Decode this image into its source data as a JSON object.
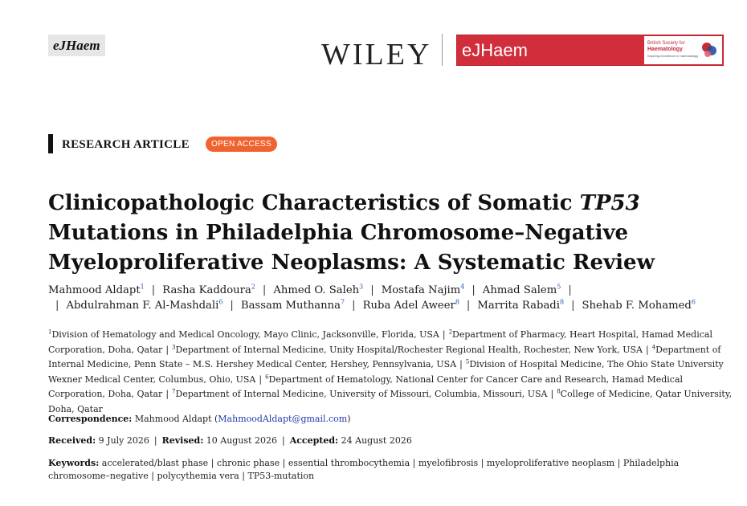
{
  "journal_tag": "eJHaem",
  "publisher": "WILEY",
  "banner": {
    "journal": "eJHaem",
    "society_line1": "British Society for",
    "society_line2": "Haematology",
    "society_line3": "Inspiring excellence in haematology"
  },
  "article_type": "RESEARCH ARTICLE",
  "open_access": "OPEN ACCESS",
  "title": {
    "part1": "Clinicopathologic Characteristics of Somatic ",
    "gene": "TP53",
    "part2": " Mutations in Philadelphia Chromosome–Negative Myeloproliferative Neoplasms: A Systematic Review"
  },
  "authors": [
    {
      "name": "Mahmood Aldapt",
      "aff": "1"
    },
    {
      "name": "Rasha Kaddoura",
      "aff": "2"
    },
    {
      "name": "Ahmed O. Saleh",
      "aff": "3"
    },
    {
      "name": "Mostafa Najim",
      "aff": "4"
    },
    {
      "name": "Ahmad Salem",
      "aff": "5"
    },
    {
      "name": "Abdulrahman F. Al-Mashdali",
      "aff": "6"
    },
    {
      "name": "Bassam Muthanna",
      "aff": "7"
    },
    {
      "name": "Ruba Adel Aweer",
      "aff": "8"
    },
    {
      "name": "Marrita Rabadi",
      "aff": "8"
    },
    {
      "name": "Shehab F. Mohamed",
      "aff": "6"
    }
  ],
  "affiliations": [
    {
      "n": "1",
      "text": "Division of Hematology and Medical Oncology, Mayo Clinic, Jacksonville, Florida, USA"
    },
    {
      "n": "2",
      "text": "Department of Pharmacy, Heart Hospital, Hamad Medical Corporation, Doha, Qatar"
    },
    {
      "n": "3",
      "text": "Department of Internal Medicine, Unity Hospital/Rochester Regional Health, Rochester, New York, USA"
    },
    {
      "n": "4",
      "text": "Department of Internal Medicine, Penn State – M.S. Hershey Medical Center, Hershey, Pennsylvania, USA"
    },
    {
      "n": "5",
      "text": "Division of Hospital Medicine, The Ohio State University Wexner Medical Center, Columbus, Ohio, USA"
    },
    {
      "n": "6",
      "text": "Department of Hematology, National Center for Cancer Care and Research, Hamad Medical Corporation, Doha, Qatar"
    },
    {
      "n": "7",
      "text": "Department of Internal Medicine, University of Missouri, Columbia, Missouri, USA"
    },
    {
      "n": "8",
      "text": "College of Medicine, Qatar University, Doha, Qatar"
    }
  ],
  "correspondence": {
    "label": "Correspondence:",
    "name": " Mahmood Aldapt (",
    "email": "MahmoodAldapt@gmail.com",
    "close": ")"
  },
  "dates": {
    "received_label": "Received:",
    "received": " 9 July 2026",
    "revised_label": "Revised:",
    "revised": " 10 August 2026",
    "accepted_label": "Accepted:",
    "accepted": " 24 August 2026"
  },
  "keywords": {
    "label": "Keywords:",
    "items": [
      "accelerated/blast phase",
      "chronic phase",
      "essential thrombocythemia",
      "myelofibrosis",
      "myeloproliferative neoplasm",
      "Philadelphia chromosome–negative",
      "polycythemia vera",
      "TP53-mutation"
    ]
  },
  "colors": {
    "banner_red": "#d12d3a",
    "open_access_orange": "#f0632f",
    "link_blue": "#1f3aa8"
  }
}
